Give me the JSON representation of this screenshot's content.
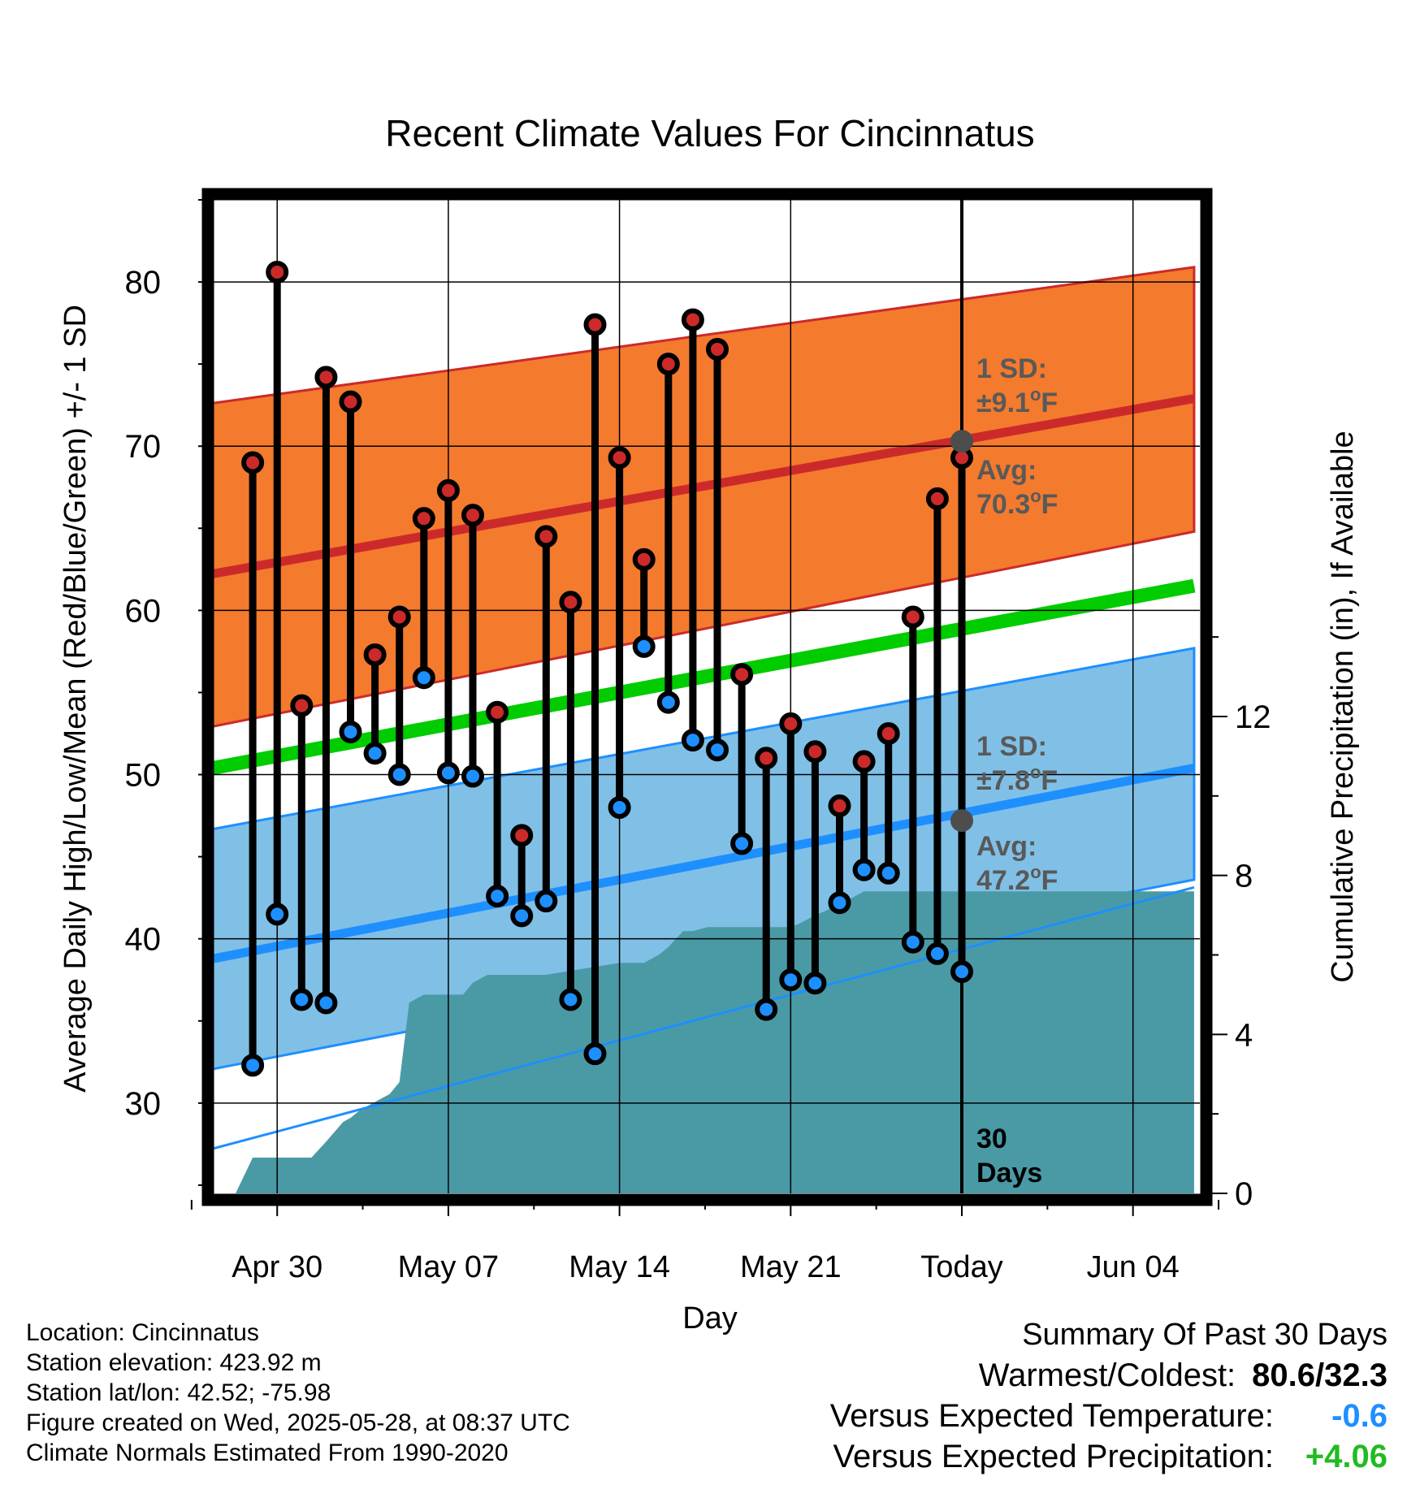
{
  "chart_data": {
    "type": "line",
    "title": "Recent Climate Values For Cincinnatus",
    "xlabel": "Day",
    "ylabel_left": "Average Daily High/Low/Mean (Red/Blue/Green) +/- 1 SD",
    "ylabel_right": "Cumulative Precipitation (in), If Available",
    "x_range_days_from_today": [
      -37.5,
      9.5
    ],
    "y_left_range": [
      24.5,
      85
    ],
    "y_right_range": [
      0,
      25
    ],
    "x_ticks": [
      {
        "label": "Apr 30",
        "day": -28
      },
      {
        "label": "May 07",
        "day": -21
      },
      {
        "label": "May 14",
        "day": -14
      },
      {
        "label": "May 21",
        "day": -7
      },
      {
        "label": "Today",
        "day": 0
      },
      {
        "label": "Jun 04",
        "day": 7
      }
    ],
    "y_left_ticks": [
      30,
      40,
      50,
      60,
      70,
      80
    ],
    "y_right_ticks": [
      0,
      4,
      8,
      12
    ],
    "grid": true,
    "today_marker": {
      "label_top": "30",
      "label_bottom": "Days"
    },
    "normals": {
      "x": [
        -37.5,
        9.5
      ],
      "high_mean": [
        60.4,
        72.9
      ],
      "high_upper": [
        71.2,
        80.9
      ],
      "high_lower": [
        50.9,
        64.8
      ],
      "mean": [
        48.5,
        61.5
      ],
      "low_mean": [
        36.8,
        50.4
      ],
      "low_upper": [
        44.8,
        57.7
      ],
      "low_lower": [
        30.1,
        43.6
      ]
    },
    "high_sd_label": {
      "line1": "1 SD:",
      "line2": "±9.1",
      "unit": "F"
    },
    "high_avg_label": {
      "line1": "Avg:",
      "line2": "70.3",
      "unit": "F",
      "value": 70.3
    },
    "low_sd_label": {
      "line1": "1 SD:",
      "line2": "±7.8",
      "unit": "F"
    },
    "low_avg_label": {
      "line1": "Avg:",
      "line2": "47.2",
      "unit": "F",
      "value": 47.2
    },
    "series": [
      {
        "name": "High",
        "color": "#cc2a2a",
        "values": [
          69.0,
          80.6,
          54.2,
          74.2,
          72.7,
          57.3,
          59.6,
          65.6,
          67.3,
          65.8,
          53.8,
          46.3,
          64.5,
          60.5,
          77.4,
          69.3,
          63.1,
          75.0,
          77.7,
          75.9,
          56.1,
          51.0,
          53.1,
          51.4,
          48.1,
          50.8,
          52.5,
          59.6,
          66.8,
          69.3
        ]
      },
      {
        "name": "Low",
        "color": "#1e8fff",
        "values": [
          32.3,
          41.5,
          36.3,
          36.1,
          52.6,
          51.3,
          50.0,
          55.9,
          50.1,
          49.9,
          42.6,
          41.4,
          42.3,
          36.3,
          33.0,
          48.0,
          57.8,
          54.4,
          52.1,
          51.5,
          45.8,
          35.7,
          37.5,
          37.3,
          42.2,
          44.2,
          44.0,
          39.8,
          39.1,
          38.0
        ]
      }
    ],
    "days": [
      -29,
      -28,
      -27,
      -26,
      -25,
      -24,
      -23,
      -22,
      -21,
      -20,
      -19,
      -18,
      -17,
      -16,
      -15,
      -14,
      -13,
      -12,
      -11,
      -10,
      -9,
      -8,
      -7,
      -6,
      -5,
      -4,
      -3,
      -2,
      -1,
      0
    ],
    "precipitation": {
      "days": [
        -29.7,
        -29,
        -28,
        -27,
        -26.6,
        -26,
        -25.3,
        -25,
        -24.6,
        -24,
        -23.4,
        -23,
        -22.6,
        -22,
        -21.6,
        -21,
        -20.4,
        -20,
        -19.4,
        -19,
        -18.3,
        -17.4,
        -17,
        -16,
        -15,
        -14,
        -13,
        -12.4,
        -12,
        -11.4,
        -11,
        -10.4,
        -10,
        -9.4,
        -9,
        -8,
        -7,
        -6.6,
        -6,
        -5.6,
        -5,
        -4.6,
        -4,
        -3,
        -2,
        -1,
        0,
        1,
        2,
        3,
        4,
        5,
        6,
        7,
        8,
        9,
        9.5
      ],
      "values": [
        0,
        0.9,
        0.9,
        0.9,
        0.9,
        1.3,
        1.8,
        1.9,
        2.1,
        2.3,
        2.5,
        2.8,
        4.8,
        5.0,
        5.0,
        5.0,
        5.0,
        5.3,
        5.5,
        5.5,
        5.5,
        5.5,
        5.5,
        5.6,
        5.7,
        5.8,
        5.8,
        6.0,
        6.2,
        6.6,
        6.6,
        6.7,
        6.7,
        6.7,
        6.7,
        6.7,
        6.7,
        6.8,
        7.0,
        7.1,
        7.3,
        7.4,
        7.6,
        7.6,
        7.6,
        7.6,
        7.6,
        7.6,
        7.6,
        7.6,
        7.6,
        7.6,
        7.6,
        7.6,
        7.6,
        7.6,
        7.6
      ],
      "normal_values_at": [
        -37.5,
        9.5
      ],
      "normal_values": [
        0,
        7.7
      ],
      "color": "#4a9aa6"
    },
    "colors": {
      "high_band": "#f47a2e",
      "high_line": "#cc2a2a",
      "mean_line": "#00cc00",
      "low_band": "#80c0e6",
      "low_line": "#1e8fff",
      "label_gray": "#595959"
    }
  },
  "info": {
    "location": "Location: Cincinnatus",
    "elevation": "Station elevation: 423.92 m",
    "latlon": "Station lat/lon: 42.52; -75.98",
    "created": "Figure created on Wed, 2025-05-28, at 08:37 UTC",
    "normals": "Climate Normals Estimated From 1990-2020"
  },
  "summary": {
    "title": "Summary Of Past 30 Days",
    "warm_cold_label": "Warmest/Coldest:",
    "warm_cold_value": "80.6/32.3",
    "temp_label": "Versus Expected Temperature:",
    "temp_value": "-0.6",
    "temp_color": "#1e8fff",
    "precip_label": "Versus Expected Precipitation:",
    "precip_value": "+4.06",
    "precip_color": "#22bb22"
  }
}
